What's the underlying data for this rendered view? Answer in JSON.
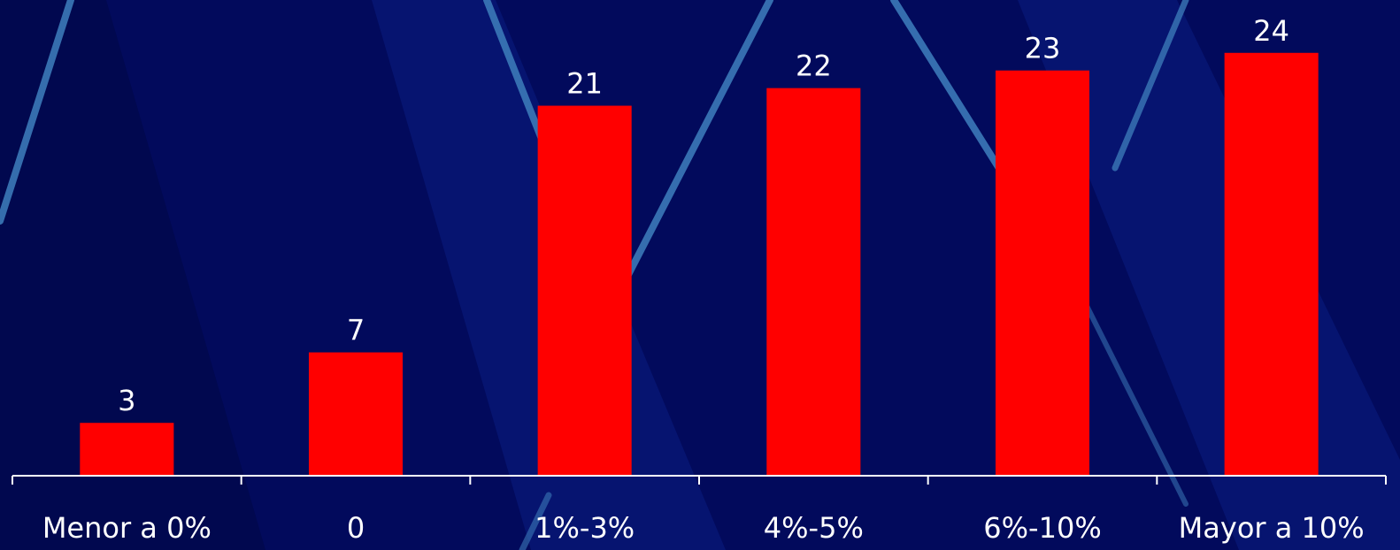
{
  "colors": {
    "background": "#020a5c",
    "bar": "#ff0000",
    "text": "#ffffff",
    "axis": "#ffffff",
    "decor_line": "#3b78b8"
  },
  "chart_data": {
    "type": "bar",
    "categories": [
      "Menor a 0%",
      "0",
      "1%-3%",
      "4%-5%",
      "6%-10%",
      "Mayor a 10%"
    ],
    "values": [
      3,
      7,
      21,
      22,
      23,
      24
    ],
    "value_labels": [
      "3",
      "7",
      "21",
      "22",
      "23",
      "24"
    ],
    "title": "",
    "xlabel": "",
    "ylabel": "",
    "ylim": [
      0,
      27
    ],
    "grid": false,
    "legend": "none",
    "data_labels": "above-bars"
  }
}
